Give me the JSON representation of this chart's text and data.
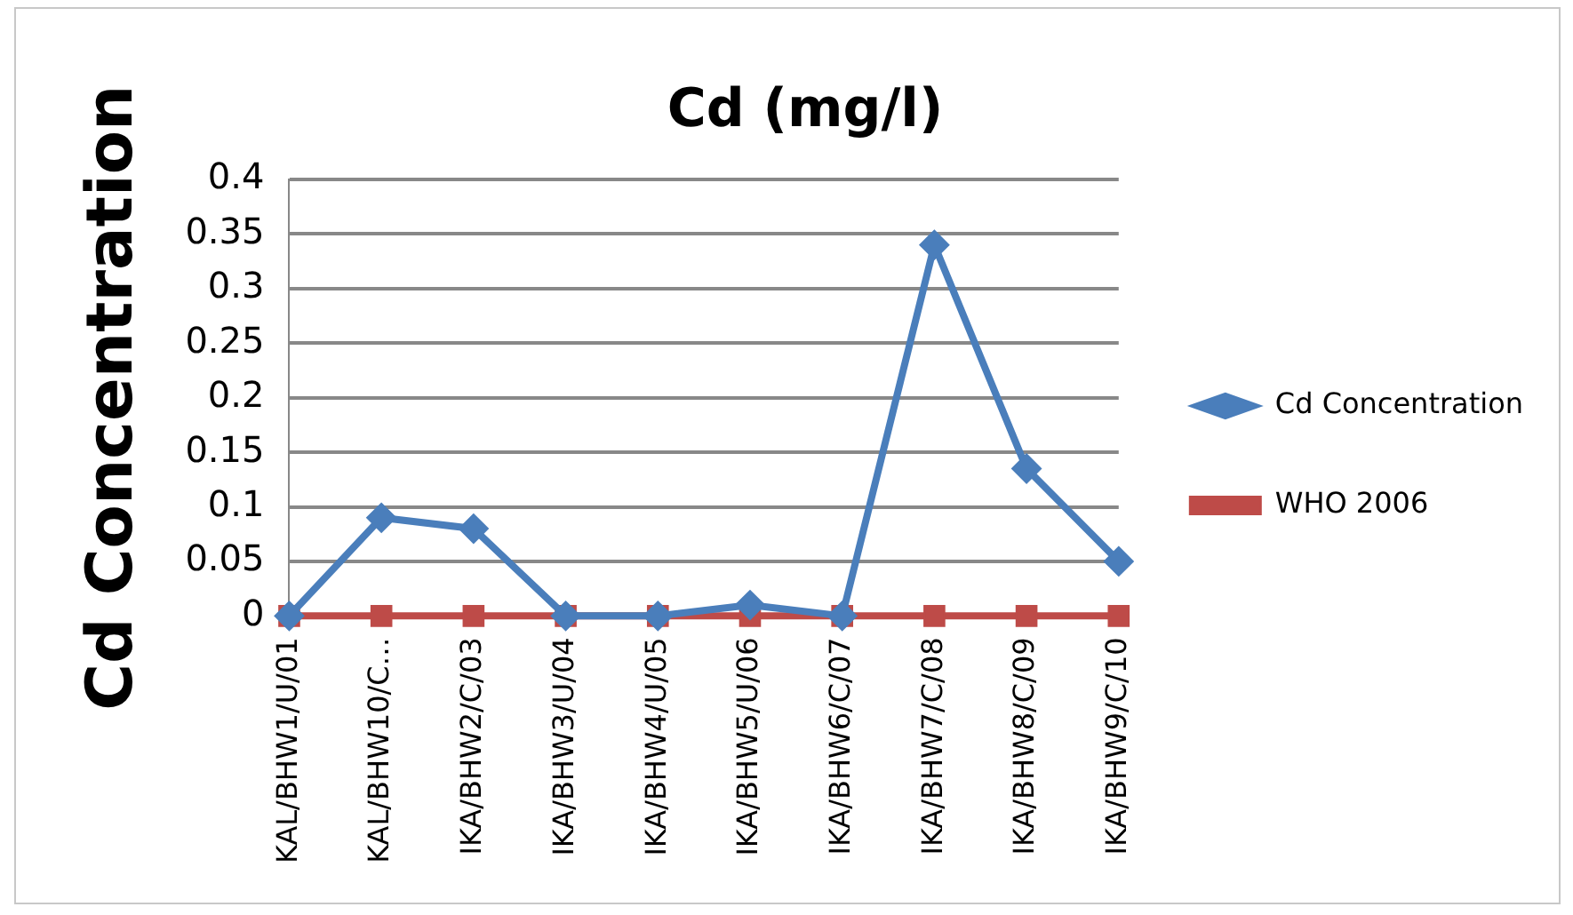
{
  "chart_data": {
    "type": "line",
    "title": "Cd (mg/l)",
    "ylabel": "Cd Concentration",
    "categories": [
      "KAL/BHW1/U/01",
      "KAL/BHW10/C…",
      "IKA/BHW2/C/03",
      "IKA/BHW3/U/04",
      "IKA/BHW4/U/05",
      "IKA/BHW5/U/06",
      "IKA/BHW6/C/07",
      "IKA/BHW7/C/08",
      "IKA/BHW8/C/09",
      "IKA/BHW9/C/10"
    ],
    "series": [
      {
        "name": "Cd Concentration",
        "color": "#4a7ebb",
        "marker": "diamond",
        "values": [
          0,
          0.09,
          0.08,
          0,
          0,
          0.01,
          0,
          0.34,
          0.135,
          0.05
        ]
      },
      {
        "name": "WHO 2006",
        "color": "#be4b48",
        "marker": "square",
        "values": [
          0,
          0,
          0,
          0,
          0,
          0,
          0,
          0,
          0,
          0
        ]
      }
    ],
    "ylim": [
      0,
      0.4
    ],
    "yticks": [
      0,
      0.05,
      0.1,
      0.15,
      0.2,
      0.25,
      0.3,
      0.35,
      0.4
    ],
    "grid": "y",
    "legend": "right"
  }
}
